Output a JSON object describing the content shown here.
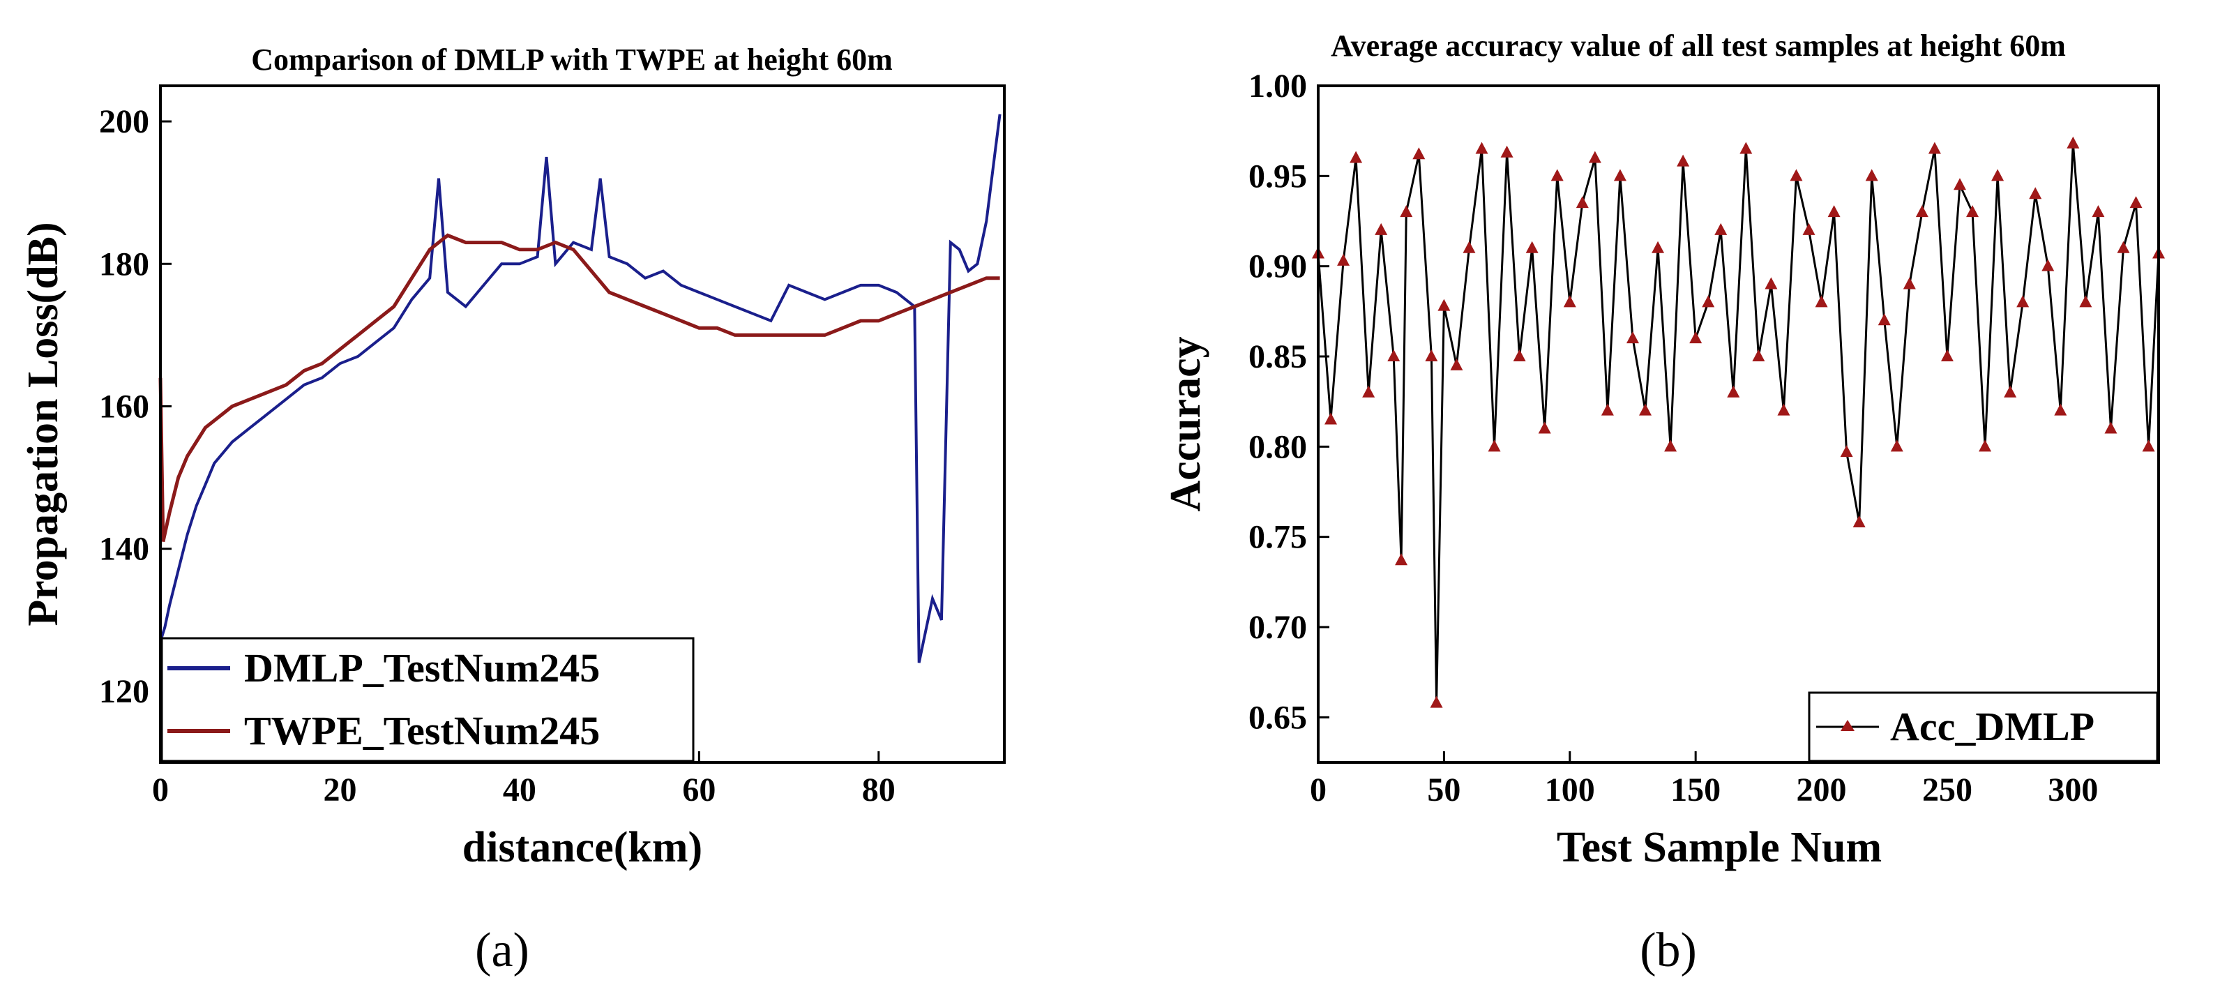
{
  "chart_data": [
    {
      "type": "line",
      "title": "Comparison of DMLP with TWPE at height 60m",
      "xlabel": "distance(km)",
      "ylabel": "Propagation Loss(dB)",
      "xlim": [
        0,
        94
      ],
      "ylim": [
        110,
        205
      ],
      "xticks": [
        0,
        20,
        40,
        60,
        80
      ],
      "yticks": [
        120,
        140,
        160,
        180,
        200
      ],
      "grid": false,
      "legend_position": "bottom-left",
      "caption": "(a)",
      "series": [
        {
          "name": "DMLP_TestNum245",
          "color": "#1a1f8c",
          "x": [
            0,
            0.5,
            1,
            2,
            3,
            4,
            5,
            6,
            8,
            10,
            12,
            14,
            16,
            18,
            20,
            22,
            24,
            26,
            28,
            30,
            31,
            32,
            34,
            36,
            38,
            40,
            42,
            43,
            44,
            46,
            48,
            49,
            50,
            52,
            54,
            56,
            58,
            60,
            62,
            64,
            66,
            68,
            70,
            72,
            74,
            76,
            78,
            80,
            82,
            83,
            84,
            84.5,
            85,
            86,
            87,
            88,
            89,
            90,
            91,
            92,
            93,
            93.5
          ],
          "values": [
            127,
            129,
            132,
            137,
            142,
            146,
            149,
            152,
            155,
            157,
            159,
            161,
            163,
            164,
            166,
            167,
            169,
            171,
            175,
            178,
            192,
            176,
            174,
            177,
            180,
            180,
            181,
            195,
            180,
            183,
            182,
            192,
            181,
            180,
            178,
            179,
            177,
            176,
            175,
            174,
            173,
            172,
            177,
            176,
            175,
            176,
            177,
            177,
            176,
            175,
            174,
            124,
            127,
            133,
            130,
            183,
            182,
            179,
            180,
            186,
            196,
            201
          ]
        },
        {
          "name": "TWPE_TestNum245",
          "color": "#8b1a1a",
          "x": [
            0,
            0.3,
            1,
            2,
            3,
            4,
            5,
            6,
            8,
            10,
            12,
            14,
            16,
            18,
            20,
            22,
            24,
            26,
            28,
            30,
            32,
            34,
            36,
            38,
            40,
            42,
            44,
            46,
            48,
            50,
            52,
            54,
            56,
            58,
            60,
            62,
            64,
            66,
            68,
            70,
            72,
            74,
            76,
            78,
            80,
            82,
            84,
            86,
            88,
            90,
            92,
            93.5
          ],
          "values": [
            164,
            141,
            145,
            150,
            153,
            155,
            157,
            158,
            160,
            161,
            162,
            163,
            165,
            166,
            168,
            170,
            172,
            174,
            178,
            182,
            184,
            183,
            183,
            183,
            182,
            182,
            183,
            182,
            179,
            176,
            175,
            174,
            173,
            172,
            171,
            171,
            170,
            170,
            170,
            170,
            170,
            170,
            171,
            172,
            172,
            173,
            174,
            175,
            176,
            177,
            178,
            178
          ]
        }
      ]
    },
    {
      "type": "line",
      "title": "Average accuracy value of all test samples at height 60m",
      "xlabel": "Test Sample Num",
      "ylabel": "Accuracy",
      "xlim": [
        0,
        334
      ],
      "ylim": [
        0.625,
        1.0
      ],
      "xticks": [
        0,
        50,
        100,
        150,
        200,
        250,
        300
      ],
      "yticks": [
        0.65,
        0.7,
        0.75,
        0.8,
        0.85,
        0.9,
        0.95,
        1.0
      ],
      "grid": false,
      "legend_position": "bottom-right",
      "caption": "(b)",
      "series": [
        {
          "name": "Acc_DMLP",
          "color": "#000000",
          "marker_color": "#a01818",
          "x": [
            0,
            5,
            10,
            15,
            20,
            25,
            30,
            33,
            35,
            40,
            45,
            47,
            50,
            55,
            60,
            65,
            70,
            75,
            80,
            85,
            90,
            95,
            100,
            105,
            110,
            115,
            120,
            125,
            130,
            135,
            140,
            145,
            150,
            155,
            160,
            165,
            170,
            175,
            180,
            185,
            190,
            195,
            200,
            205,
            210,
            215,
            220,
            225,
            230,
            235,
            240,
            245,
            250,
            255,
            260,
            265,
            270,
            275,
            280,
            285,
            290,
            295,
            300,
            305,
            310,
            315,
            320,
            325,
            330,
            334
          ],
          "values": [
            0.907,
            0.815,
            0.903,
            0.96,
            0.83,
            0.92,
            0.85,
            0.737,
            0.93,
            0.962,
            0.85,
            0.658,
            0.878,
            0.845,
            0.91,
            0.965,
            0.8,
            0.963,
            0.85,
            0.91,
            0.81,
            0.95,
            0.88,
            0.935,
            0.96,
            0.82,
            0.95,
            0.86,
            0.82,
            0.91,
            0.8,
            0.958,
            0.86,
            0.88,
            0.92,
            0.83,
            0.965,
            0.85,
            0.89,
            0.82,
            0.95,
            0.92,
            0.88,
            0.93,
            0.797,
            0.758,
            0.95,
            0.87,
            0.8,
            0.89,
            0.93,
            0.965,
            0.85,
            0.945,
            0.93,
            0.8,
            0.95,
            0.83,
            0.88,
            0.94,
            0.9,
            0.82,
            0.968,
            0.88,
            0.93,
            0.81,
            0.91,
            0.935,
            0.8,
            0.907
          ]
        }
      ]
    }
  ]
}
